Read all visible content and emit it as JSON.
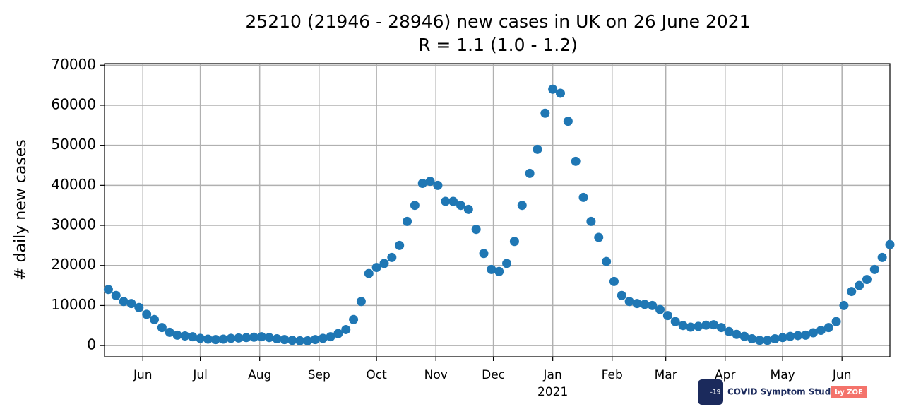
{
  "chart_data": {
    "type": "scatter",
    "title": "25210 (21946 - 28946) new cases in UK on 26 June 2021",
    "subtitle": "R = 1.1 (1.0 - 1.2)",
    "ylabel": "# daily new cases",
    "x_offset_label": "2021",
    "color": "#1f77b4",
    "grid": true,
    "xlim": [
      "2020-05-12",
      "2021-06-26"
    ],
    "ylim": [
      -2800,
      70400
    ],
    "yticks": [
      0,
      10000,
      20000,
      30000,
      40000,
      50000,
      60000,
      70000
    ],
    "xticks": [
      {
        "value": "2020-06-01",
        "label": "Jun"
      },
      {
        "value": "2020-07-01",
        "label": "Jul"
      },
      {
        "value": "2020-08-01",
        "label": "Aug"
      },
      {
        "value": "2020-09-01",
        "label": "Sep"
      },
      {
        "value": "2020-10-01",
        "label": "Oct"
      },
      {
        "value": "2020-11-01",
        "label": "Nov"
      },
      {
        "value": "2020-12-01",
        "label": "Dec"
      },
      {
        "value": "2021-01-01",
        "label": "Jan"
      },
      {
        "value": "2021-02-01",
        "label": "Feb"
      },
      {
        "value": "2021-03-01",
        "label": "Mar"
      },
      {
        "value": "2021-04-01",
        "label": "Apr"
      },
      {
        "value": "2021-05-01",
        "label": "May"
      },
      {
        "value": "2021-06-01",
        "label": "Jun"
      }
    ],
    "x": [
      "2020-05-14",
      "2020-05-18",
      "2020-05-22",
      "2020-05-26",
      "2020-05-30",
      "2020-06-03",
      "2020-06-07",
      "2020-06-11",
      "2020-06-15",
      "2020-06-19",
      "2020-06-23",
      "2020-06-27",
      "2020-07-01",
      "2020-07-05",
      "2020-07-09",
      "2020-07-13",
      "2020-07-17",
      "2020-07-21",
      "2020-07-25",
      "2020-07-29",
      "2020-08-02",
      "2020-08-06",
      "2020-08-10",
      "2020-08-14",
      "2020-08-18",
      "2020-08-22",
      "2020-08-26",
      "2020-08-30",
      "2020-09-03",
      "2020-09-07",
      "2020-09-11",
      "2020-09-15",
      "2020-09-19",
      "2020-09-23",
      "2020-09-27",
      "2020-10-01",
      "2020-10-05",
      "2020-10-09",
      "2020-10-13",
      "2020-10-17",
      "2020-10-21",
      "2020-10-25",
      "2020-10-29",
      "2020-11-02",
      "2020-11-06",
      "2020-11-10",
      "2020-11-14",
      "2020-11-18",
      "2020-11-22",
      "2020-11-26",
      "2020-11-30",
      "2020-12-04",
      "2020-12-08",
      "2020-12-12",
      "2020-12-16",
      "2020-12-20",
      "2020-12-24",
      "2020-12-28",
      "2021-01-01",
      "2021-01-05",
      "2021-01-09",
      "2021-01-13",
      "2021-01-17",
      "2021-01-21",
      "2021-01-25",
      "2021-01-29",
      "2021-02-02",
      "2021-02-06",
      "2021-02-10",
      "2021-02-14",
      "2021-02-18",
      "2021-02-22",
      "2021-02-26",
      "2021-03-02",
      "2021-03-06",
      "2021-03-10",
      "2021-03-14",
      "2021-03-18",
      "2021-03-22",
      "2021-03-26",
      "2021-03-30",
      "2021-04-03",
      "2021-04-07",
      "2021-04-11",
      "2021-04-15",
      "2021-04-19",
      "2021-04-23",
      "2021-04-27",
      "2021-05-01",
      "2021-05-05",
      "2021-05-09",
      "2021-05-13",
      "2021-05-17",
      "2021-05-21",
      "2021-05-25",
      "2021-05-29",
      "2021-06-02",
      "2021-06-06",
      "2021-06-10",
      "2021-06-14",
      "2021-06-18",
      "2021-06-22",
      "2021-06-26"
    ],
    "values": [
      14000,
      12500,
      11000,
      10500,
      9500,
      7800,
      6500,
      4500,
      3300,
      2600,
      2400,
      2200,
      1800,
      1600,
      1500,
      1600,
      1800,
      1900,
      2000,
      2100,
      2200,
      2000,
      1700,
      1500,
      1300,
      1200,
      1200,
      1500,
      1800,
      2200,
      3000,
      4000,
      6500,
      11000,
      18000,
      19500,
      20500,
      22000,
      25000,
      31000,
      35000,
      40500,
      41000,
      40000,
      36000,
      36000,
      35000,
      34000,
      29000,
      23000,
      19000,
      18500,
      20500,
      26000,
      35000,
      43000,
      49000,
      58000,
      64000,
      63000,
      56000,
      46000,
      37000,
      31000,
      27000,
      21000,
      16000,
      12500,
      11000,
      10500,
      10300,
      10000,
      9000,
      7500,
      6000,
      5000,
      4600,
      4800,
      5100,
      5200,
      4500,
      3500,
      2800,
      2300,
      1700,
      1300,
      1300,
      1700,
      2000,
      2300,
      2500,
      2600,
      3200,
      3800,
      4500,
      6000,
      10000,
      13500,
      15000,
      16500,
      19000,
      22000,
      25210
    ]
  },
  "logo": {
    "text": "COVID Symptom Study",
    "by": "by ZOE",
    "badge": "-19"
  }
}
